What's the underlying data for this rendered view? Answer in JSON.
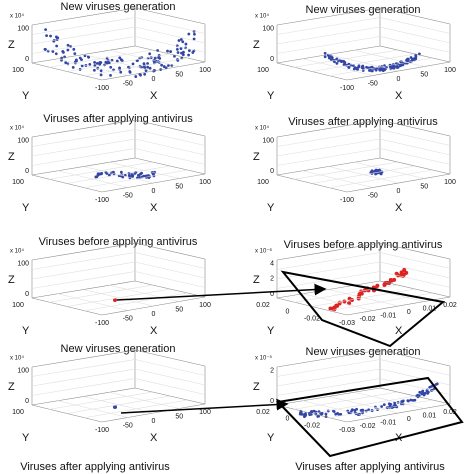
{
  "panels": [
    {
      "title": "New viruses generation",
      "exponent": "x 10⁴",
      "z_label": "Z",
      "z_ticks": [
        "100",
        "0"
      ],
      "y_label": "Y",
      "y_ticks": [
        "100"
      ],
      "x_label": "X",
      "x_ticks": [
        "-100",
        "-50",
        "0",
        "50",
        "100"
      ]
    },
    {
      "title": "New viruses generation",
      "exponent": "x 10⁴",
      "z_label": "Z",
      "z_ticks": [
        "100",
        "0"
      ],
      "y_label": "Y",
      "y_ticks": [
        "100"
      ],
      "x_label": "X",
      "x_ticks": [
        "-100",
        "-50",
        "0",
        "50",
        "100"
      ]
    },
    {
      "title": "Viruses after applying antivirus",
      "exponent": "x 10⁴",
      "z_label": "Z",
      "z_ticks": [
        "100",
        "0"
      ],
      "y_label": "Y",
      "y_ticks": [
        "100"
      ],
      "x_label": "X",
      "x_ticks": [
        "-100",
        "-50",
        "0",
        "50",
        "100"
      ]
    },
    {
      "title": "Viruses after applying antivirus",
      "exponent": "x 10⁴",
      "z_label": "Z",
      "z_ticks": [
        "100",
        "0"
      ],
      "y_label": "Y",
      "y_ticks": [
        "100"
      ],
      "x_label": "X",
      "x_ticks": [
        "-100",
        "-50",
        "0",
        "50",
        "100"
      ]
    },
    {
      "title": "Viruses before applying antivirus",
      "exponent": "x 10⁴",
      "z_label": "Z",
      "z_ticks": [
        "100",
        "0"
      ],
      "y_label": "Y",
      "y_ticks": [
        "100"
      ],
      "x_label": "X",
      "x_ticks": [
        "-100",
        "-50",
        "0",
        "50",
        "100"
      ]
    },
    {
      "title": "Viruses before applying antivirus",
      "exponent": "x 10⁻⁶",
      "z_label": "Z",
      "z_ticks": [
        "4",
        "2",
        "0"
      ],
      "y_label": "Y",
      "y_ticks": [
        "0.02",
        "0",
        "-0.02"
      ],
      "x_label": "X",
      "x_ticks": [
        "-0.03",
        "-0.02",
        "-0.01",
        "0",
        "0.01",
        "0.02"
      ]
    },
    {
      "title": "New viruses generation",
      "exponent": "x 10⁴",
      "z_label": "Z",
      "z_ticks": [
        "100",
        "0"
      ],
      "y_label": "Y",
      "y_ticks": [
        "100"
      ],
      "x_label": "X",
      "x_ticks": [
        "-100",
        "-50",
        "0",
        "50",
        "100"
      ]
    },
    {
      "title": "New viruses generation",
      "exponent": "x 10⁻⁵",
      "z_label": "Z",
      "z_ticks": [
        "2",
        "0"
      ],
      "y_label": "Y",
      "y_ticks": [
        "0.02",
        "0",
        "-0.02"
      ],
      "x_label": "X",
      "x_ticks": [
        "-0.03",
        "-0.02",
        "-0.01",
        "0",
        "0.01",
        "0.02"
      ]
    }
  ],
  "bottom_captions": [
    "Viruses after applying antivirus",
    "Viruses after applying antivirus"
  ]
}
